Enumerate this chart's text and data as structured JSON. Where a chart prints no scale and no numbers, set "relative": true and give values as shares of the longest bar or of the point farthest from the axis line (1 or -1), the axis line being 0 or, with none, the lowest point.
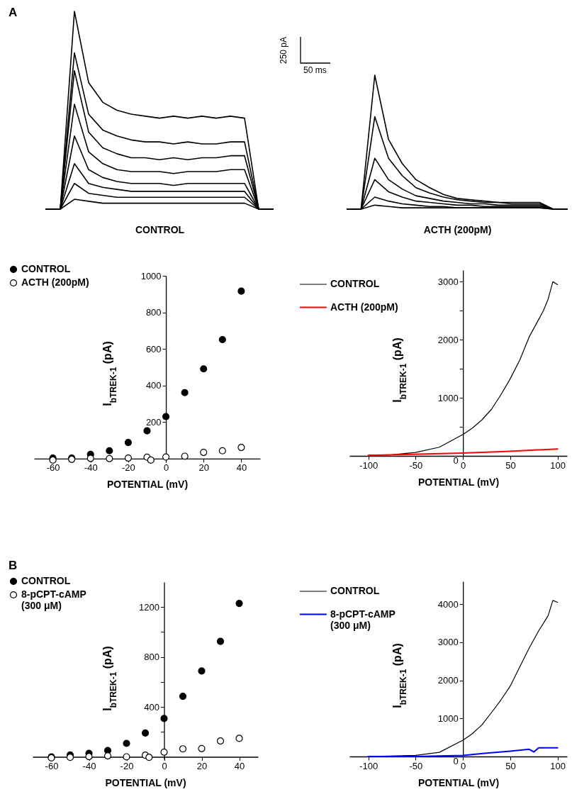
{
  "chart_data": [
    {
      "type": "line",
      "title": "A",
      "xlabel": "CONTROL",
      "relative": true,
      "legend": false,
      "annotations": [
        "250 pA",
        "50 ms"
      ],
      "categories": [
        null,
        null,
        null,
        null,
        null,
        null,
        null,
        null,
        null,
        null,
        null,
        null,
        null,
        null,
        null,
        null,
        null
      ],
      "series": [
        {
          "color": "#000000",
          "values": [
            0,
            0,
            1,
            0.64,
            0.54,
            0.5,
            0.48,
            0.47,
            0.46,
            0.47,
            0.46,
            0.47,
            0.46,
            0.47,
            0.46,
            0,
            0
          ]
        },
        {
          "color": "#000000",
          "values": [
            0,
            0,
            0.79,
            0.48,
            0.4,
            0.37,
            0.35,
            0.34,
            0.34,
            0.33,
            0.34,
            0.33,
            0.33,
            0.34,
            0.34,
            0,
            0
          ]
        },
        {
          "color": "#000000",
          "values": [
            0,
            0,
            0.7,
            0.39,
            0.31,
            0.28,
            0.26,
            0.26,
            0.25,
            0.26,
            0.25,
            0.26,
            0.26,
            0.27,
            0.27,
            0,
            0
          ]
        },
        {
          "color": "#000000",
          "values": [
            0,
            0,
            0.53,
            0.29,
            0.23,
            0.2,
            0.19,
            0.19,
            0.19,
            0.18,
            0.19,
            0.19,
            0.19,
            0.2,
            0.2,
            0,
            0
          ]
        },
        {
          "color": "#000000",
          "values": [
            0,
            0,
            0.37,
            0.2,
            0.16,
            0.14,
            0.13,
            0.13,
            0.13,
            0.12,
            0.13,
            0.13,
            0.13,
            0.13,
            0.13,
            0,
            0
          ]
        },
        {
          "color": "#000000",
          "values": [
            0,
            0,
            0.23,
            0.13,
            0.11,
            0.1,
            0.09,
            0.09,
            0.09,
            0.09,
            0.09,
            0.09,
            0.09,
            0.09,
            0.09,
            0,
            0
          ]
        },
        {
          "color": "#000000",
          "values": [
            0,
            0,
            0.13,
            0.08,
            0.07,
            0.06,
            0.06,
            0.06,
            0.06,
            0.06,
            0.06,
            0.06,
            0.06,
            0.06,
            0.06,
            0,
            0
          ]
        },
        {
          "color": "#000000",
          "values": [
            0,
            0,
            0.05,
            0.04,
            0.03,
            0.03,
            0.03,
            0.03,
            0.03,
            0.03,
            0.03,
            0.03,
            0.03,
            0.03,
            0.03,
            0,
            0
          ]
        }
      ]
    },
    {
      "type": "line",
      "xlabel": "ACTH (200pM)",
      "relative": true,
      "legend": false,
      "categories": [
        null,
        null,
        null,
        null,
        null,
        null,
        null,
        null,
        null,
        null,
        null,
        null,
        null,
        null,
        null,
        null,
        null
      ],
      "series": [
        {
          "color": "#000000",
          "values": [
            0,
            0,
            1,
            0.52,
            0.34,
            0.22,
            0.16,
            0.11,
            0.08,
            0.07,
            0.06,
            0.05,
            0.05,
            0.05,
            0.05,
            0,
            0
          ]
        },
        {
          "color": "#000000",
          "values": [
            0,
            0,
            0.69,
            0.38,
            0.25,
            0.16,
            0.12,
            0.09,
            0.07,
            0.06,
            0.05,
            0.05,
            0.04,
            0.04,
            0.04,
            0,
            0
          ]
        },
        {
          "color": "#000000",
          "values": [
            0,
            0,
            0.38,
            0.22,
            0.15,
            0.1,
            0.08,
            0.06,
            0.05,
            0.04,
            0.04,
            0.03,
            0.03,
            0.03,
            0.03,
            0,
            0
          ]
        },
        {
          "color": "#000000",
          "values": [
            0,
            0,
            0.22,
            0.13,
            0.09,
            0.06,
            0.05,
            0.04,
            0.03,
            0.03,
            0.02,
            0.02,
            0.02,
            0.02,
            0.02,
            0,
            0
          ]
        },
        {
          "color": "#000000",
          "values": [
            0,
            0,
            0.09,
            0.06,
            0.04,
            0.03,
            0.02,
            0.02,
            0.01,
            0.01,
            0.01,
            0.01,
            0.01,
            0.01,
            0.01,
            0,
            0
          ]
        },
        {
          "color": "#000000",
          "values": [
            0,
            0,
            0.03,
            0.02,
            0.01,
            0.01,
            0.01,
            0.01,
            0.01,
            0.01,
            0.01,
            0.01,
            0.01,
            0.01,
            0.01,
            0,
            0
          ]
        }
      ]
    },
    {
      "type": "scatter",
      "xlabel": "POTENTIAL (mV)",
      "ylabel": "I$_{bTREK-1}$ (pA)",
      "marker": "circle",
      "legend": "top left",
      "x": [
        -60,
        -50,
        -40,
        -30,
        -20,
        -10,
        0,
        10,
        20,
        30,
        40
      ],
      "xlim": [
        -70,
        50
      ],
      "xticks": [
        -60,
        -40,
        -20,
        0,
        20,
        40
      ],
      "ylim": [
        -20,
        1000
      ],
      "yticks": [
        200,
        400,
        600,
        800,
        1000
      ],
      "series": [
        {
          "name": "CONTROL",
          "color": "#000000",
          "values": [
            3,
            3,
            23,
            43,
            88,
            152,
            230,
            361,
            491,
            651,
            916
          ]
        },
        {
          "name": "ACTH (200pM)",
          "color": "#ffffff",
          "x": [
            -60,
            -50,
            -40,
            -30,
            -20,
            -10,
            -8,
            0,
            10,
            20,
            30,
            40
          ],
          "values": [
            -8,
            -4,
            1,
            0,
            3,
            8,
            -8,
            9,
            13,
            34,
            43,
            61
          ]
        }
      ]
    },
    {
      "type": "line",
      "xlabel": "POTENTIAL (mV)",
      "ylabel": "I$_{bTREK-1}$ (pA)",
      "legend": "top left",
      "xlim": [
        -120,
        110
      ],
      "xticks": [
        -100,
        -50,
        0,
        50,
        100
      ],
      "ylim": [
        0,
        3200
      ],
      "yticks": [
        0,
        {
          "value": 500,
          "label": null
        },
        1000,
        {
          "value": 1500,
          "label": null
        },
        2000,
        {
          "value": 2500,
          "label": null
        },
        3000
      ],
      "series": [
        {
          "name": "CONTROL",
          "color": "#000000",
          "x": [
            -100,
            -75,
            -50,
            -25,
            0,
            10,
            20,
            30,
            40,
            50,
            60,
            70,
            80,
            85,
            90,
            95,
            100
          ],
          "values": [
            10,
            20,
            60,
            150,
            370,
            480,
            620,
            800,
            1050,
            1330,
            1650,
            2050,
            2350,
            2500,
            2700,
            3000,
            2950
          ]
        },
        {
          "name": "ACTH (200pM)",
          "color": "#ff0000",
          "x": [
            -100,
            0,
            50,
            100
          ],
          "values": [
            10,
            50,
            80,
            120
          ]
        }
      ]
    },
    {
      "type": "scatter",
      "title": "B",
      "xlabel": "POTENTIAL (mV)",
      "ylabel": "I$_{bTREK-1}$ (pA)",
      "marker": "circle",
      "legend": "top left",
      "x": [
        -60,
        -50,
        -40,
        -30,
        -20,
        -10,
        0,
        10,
        20,
        30,
        40
      ],
      "xlim": [
        -70,
        50
      ],
      "xticks": [
        -60,
        -40,
        -20,
        0,
        20,
        40
      ],
      "ylim": [
        -20,
        1400
      ],
      "yticks": [
        {
          "value": 200,
          "label": null
        },
        400,
        {
          "value": 600,
          "label": null
        },
        800,
        {
          "value": 1000,
          "label": null
        },
        1200
      ],
      "series": [
        {
          "name": "CONTROL",
          "color": "#000000",
          "values": [
            0,
            15,
            28,
            51,
            108,
            191,
            307,
            485,
            688,
            925,
            1229
          ]
        },
        {
          "name": "8-pCPT-cAMP (300 μM)",
          "color": "#ffffff",
          "x": [
            -60,
            -50,
            -40,
            -30,
            -20,
            -10,
            -8,
            0,
            10,
            20,
            30,
            40
          ],
          "values": [
            -8,
            -4,
            2,
            8,
            0,
            13,
            -4,
            38,
            64,
            66,
            127,
            148
          ]
        }
      ]
    },
    {
      "type": "line",
      "xlabel": "POTENTIAL (mV)",
      "ylabel": "I$_{bTREK-1}$ (pA)",
      "legend": "top left",
      "xlim": [
        -120,
        110
      ],
      "xticks": [
        -100,
        -50,
        0,
        50,
        100
      ],
      "ylim": [
        0,
        4600
      ],
      "yticks": [
        0,
        1000,
        2000,
        3000,
        4000
      ],
      "series": [
        {
          "name": "CONTROL",
          "color": "#000000",
          "x": [
            -100,
            -50,
            -25,
            0,
            10,
            20,
            30,
            40,
            50,
            60,
            70,
            80,
            90,
            95,
            100
          ],
          "values": [
            0,
            30,
            110,
            430,
            600,
            830,
            1150,
            1480,
            1850,
            2350,
            2850,
            3300,
            3700,
            4100,
            4050
          ]
        },
        {
          "name": "8-pCPT-cAMP (300 μM)",
          "color": "#0000ff",
          "x": [
            -100,
            -50,
            0,
            25,
            50,
            70,
            75,
            80,
            100
          ],
          "values": [
            0,
            0,
            30,
            90,
            140,
            190,
            120,
            230,
            230
          ]
        }
      ]
    }
  ]
}
